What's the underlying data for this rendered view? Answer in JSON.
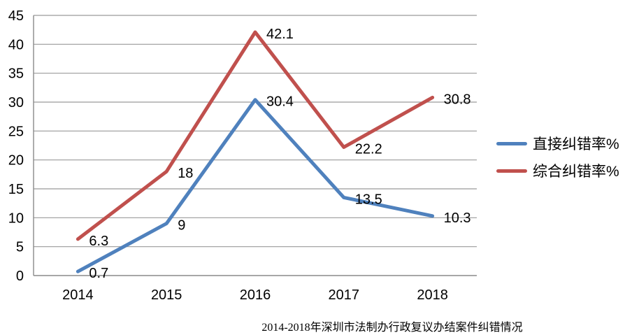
{
  "chart_data": {
    "type": "line",
    "title": "2014-2018年深圳市法制办行政复议办结案件纠错情况",
    "categories": [
      "2014",
      "2015",
      "2016",
      "2017",
      "2018"
    ],
    "series": [
      {
        "name": "直接纠错率%",
        "color": "#4F81BD",
        "values": [
          0.7,
          9,
          30.4,
          13.5,
          10.3
        ]
      },
      {
        "name": "综合纠错率%",
        "color": "#C0504D",
        "values": [
          6.3,
          18,
          42.1,
          22.2,
          30.8
        ]
      }
    ],
    "ylim": [
      0,
      45
    ],
    "ytick_interval": 5,
    "yticks": [
      0,
      5,
      10,
      15,
      20,
      25,
      30,
      35,
      40,
      45
    ],
    "grid": true,
    "data_labels": true,
    "legend_position": "right"
  },
  "colors": {
    "grid": "#9a9a9a",
    "axis": "#8a8a8a",
    "text": "#000000",
    "background": "#ffffff"
  }
}
